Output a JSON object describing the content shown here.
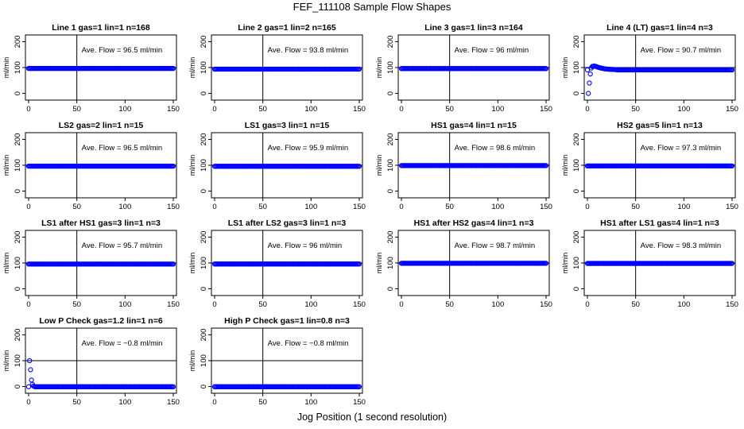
{
  "title": "FEF_111108  Sample Flow Shapes",
  "xlabel": "Jog Position (1 second resolution)",
  "chart_data": {
    "type": "scatter",
    "ylabel": "ml/min",
    "xlim": [
      0,
      150
    ],
    "ylim": [
      0,
      200
    ],
    "xticks": [
      "0",
      "50",
      "100",
      "150"
    ],
    "yticks": [
      "0",
      "100",
      "200"
    ],
    "reference_x": 50,
    "reference_y": 100,
    "point_color": "#0000ff",
    "panels": [
      {
        "title": "Line 1 gas=1 lin=1 n=168",
        "flow_label": "Ave. Flow =  96.5  ml/min",
        "flow": 96.5,
        "transient": []
      },
      {
        "title": "Line 2 gas=1 lin=2 n=165",
        "flow_label": "Ave. Flow =  93.8  ml/min",
        "flow": 93.8,
        "transient": []
      },
      {
        "title": "Line 3 gas=1 lin=3 n=164",
        "flow_label": "Ave. Flow =  96   ml/min",
        "flow": 96,
        "transient": []
      },
      {
        "title": "Line 4 (LT) gas=1 lin=4 n=3",
        "flow_label": "Ave. Flow =  90.7  ml/min",
        "flow": 90.7,
        "transient": [
          [
            1,
            0
          ],
          [
            2,
            40
          ],
          [
            3,
            75
          ],
          [
            4,
            98
          ],
          [
            5,
            104
          ],
          [
            7,
            106
          ],
          [
            9,
            104
          ],
          [
            11,
            101
          ],
          [
            14,
            98
          ],
          [
            18,
            95
          ],
          [
            23,
            93
          ],
          [
            30,
            92
          ]
        ]
      },
      {
        "title": "LS2 gas=2 lin=1 n=15",
        "flow_label": "Ave. Flow =  96.5  ml/min",
        "flow": 96.5,
        "transient": []
      },
      {
        "title": "LS1 gas=3 lin=1 n=15",
        "flow_label": "Ave. Flow =  95.9  ml/min",
        "flow": 95.9,
        "transient": []
      },
      {
        "title": "HS1 gas=4 lin=1 n=15",
        "flow_label": "Ave. Flow =  98.6  ml/min",
        "flow": 98.6,
        "transient": []
      },
      {
        "title": "HS2 gas=5 lin=1 n=13",
        "flow_label": "Ave. Flow =  97.3  ml/min",
        "flow": 97.3,
        "transient": []
      },
      {
        "title": "LS1 after HS1 gas=3 lin=1 n=3",
        "flow_label": "Ave. Flow =  95.7  ml/min",
        "flow": 95.7,
        "transient": []
      },
      {
        "title": "LS1 after LS2 gas=3 lin=1 n=3",
        "flow_label": "Ave. Flow =  96   ml/min",
        "flow": 96,
        "transient": []
      },
      {
        "title": "HS1 after HS2 gas=4 lin=1 n=3",
        "flow_label": "Ave. Flow =  98.7  ml/min",
        "flow": 98.7,
        "transient": []
      },
      {
        "title": "HS1 after LS1 gas=4 lin=1 n=3",
        "flow_label": "Ave. Flow =  98.3  ml/min",
        "flow": 98.3,
        "transient": []
      },
      {
        "title": "Low P Check gas=1.2 lin=1 n=6",
        "flow_label": "Ave. Flow =  −0.8  ml/min",
        "flow": -0.8,
        "transient": [
          [
            1,
            100
          ],
          [
            2,
            65
          ],
          [
            3,
            25
          ],
          [
            4,
            8
          ],
          [
            5,
            2
          ],
          [
            6,
            0
          ]
        ]
      },
      {
        "title": "High P Check gas=1 lin=0.8 n=3",
        "flow_label": "Ave. Flow =  −0.8  ml/min",
        "flow": -0.8,
        "transient": []
      }
    ]
  }
}
